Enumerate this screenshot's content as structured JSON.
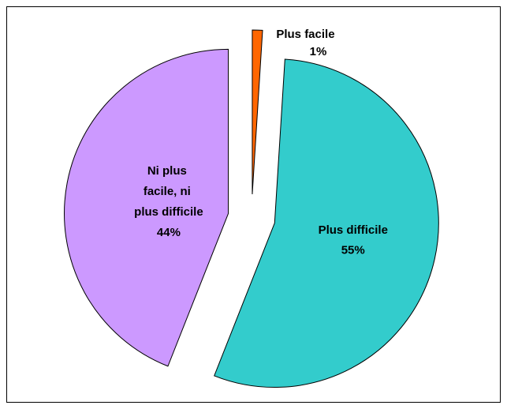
{
  "chart_data": {
    "type": "pie",
    "categories": [
      "Plus facile",
      "Plus difficile",
      "Ni plus facile, ni plus difficile"
    ],
    "values": [
      1,
      55,
      44
    ],
    "value_labels": [
      "1%",
      "55%",
      "44%"
    ],
    "colors": [
      "#ff6600",
      "#33cccc",
      "#cc99ff"
    ]
  }
}
